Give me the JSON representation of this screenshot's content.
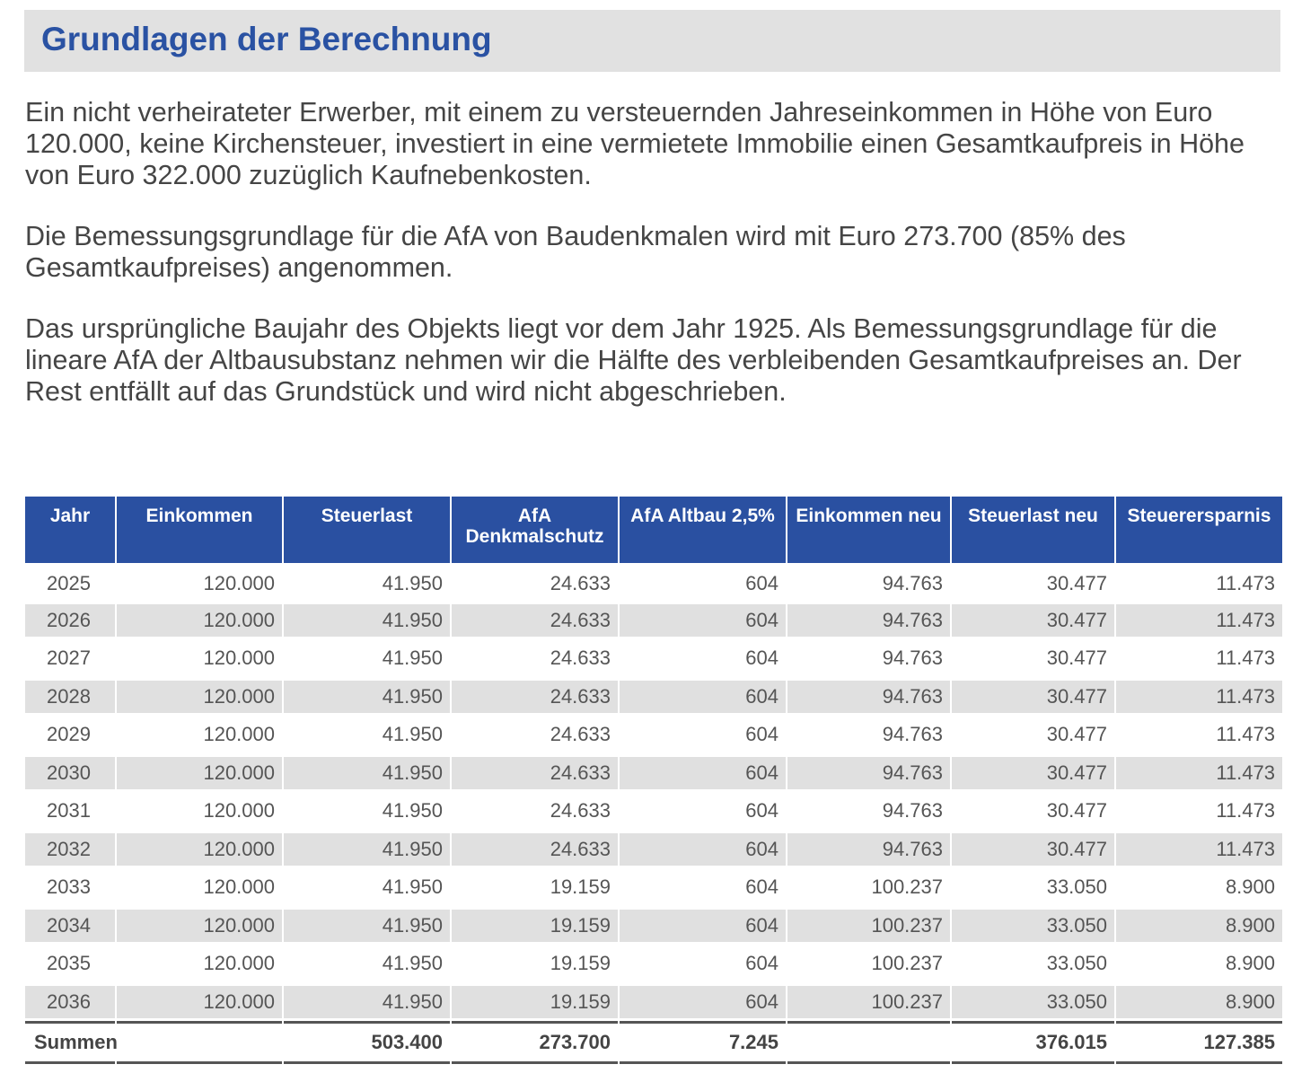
{
  "title": "Grundlagen der Berechnung",
  "paragraphs": [
    "Ein nicht verheirateter Erwerber, mit einem zu versteuernden Jahreseinkommen in Höhe von Euro 120.000, keine Kirchensteuer, investiert in eine vermietete Immobilie einen Gesamtkaufpreis in Höhe von Euro 322.000 zuzüglich Kaufnebenkosten.",
    "Die Bemessungsgrundlage für die AfA von Baudenkmalen wird mit Euro 273.700 (85% des Gesamtkaufpreises) angenommen.",
    "Das ursprüngliche Baujahr des Objekts liegt vor dem Jahr 1925. Als Bemessungsgrundlage für die lineare AfA der Altbausubstanz nehmen wir die Hälfte des verbleibenden Gesamtkaufpreises an. Der Rest entfällt auf das Grundstück und wird nicht abgeschrieben."
  ],
  "table": {
    "headers": [
      "Jahr",
      "Einkommen",
      "Steuerlast",
      "AfA Denkmalschutz",
      "AfA Altbau 2,5%",
      "Einkommen neu",
      "Steuerlast neu",
      "Steuerersparnis"
    ],
    "rows": [
      [
        "2025",
        "120.000",
        "41.950",
        "24.633",
        "604",
        "94.763",
        "30.477",
        "11.473"
      ],
      [
        "2026",
        "120.000",
        "41.950",
        "24.633",
        "604",
        "94.763",
        "30.477",
        "11.473"
      ],
      [
        "2027",
        "120.000",
        "41.950",
        "24.633",
        "604",
        "94.763",
        "30.477",
        "11.473"
      ],
      [
        "2028",
        "120.000",
        "41.950",
        "24.633",
        "604",
        "94.763",
        "30.477",
        "11.473"
      ],
      [
        "2029",
        "120.000",
        "41.950",
        "24.633",
        "604",
        "94.763",
        "30.477",
        "11.473"
      ],
      [
        "2030",
        "120.000",
        "41.950",
        "24.633",
        "604",
        "94.763",
        "30.477",
        "11.473"
      ],
      [
        "2031",
        "120.000",
        "41.950",
        "24.633",
        "604",
        "94.763",
        "30.477",
        "11.473"
      ],
      [
        "2032",
        "120.000",
        "41.950",
        "24.633",
        "604",
        "94.763",
        "30.477",
        "11.473"
      ],
      [
        "2033",
        "120.000",
        "41.950",
        "19.159",
        "604",
        "100.237",
        "33.050",
        "8.900"
      ],
      [
        "2034",
        "120.000",
        "41.950",
        "19.159",
        "604",
        "100.237",
        "33.050",
        "8.900"
      ],
      [
        "2035",
        "120.000",
        "41.950",
        "19.159",
        "604",
        "100.237",
        "33.050",
        "8.900"
      ],
      [
        "2036",
        "120.000",
        "41.950",
        "19.159",
        "604",
        "100.237",
        "33.050",
        "8.900"
      ]
    ],
    "totals": [
      "Summen",
      "",
      "503.400",
      "273.700",
      "7.245",
      "",
      "376.015",
      "127.385"
    ]
  }
}
